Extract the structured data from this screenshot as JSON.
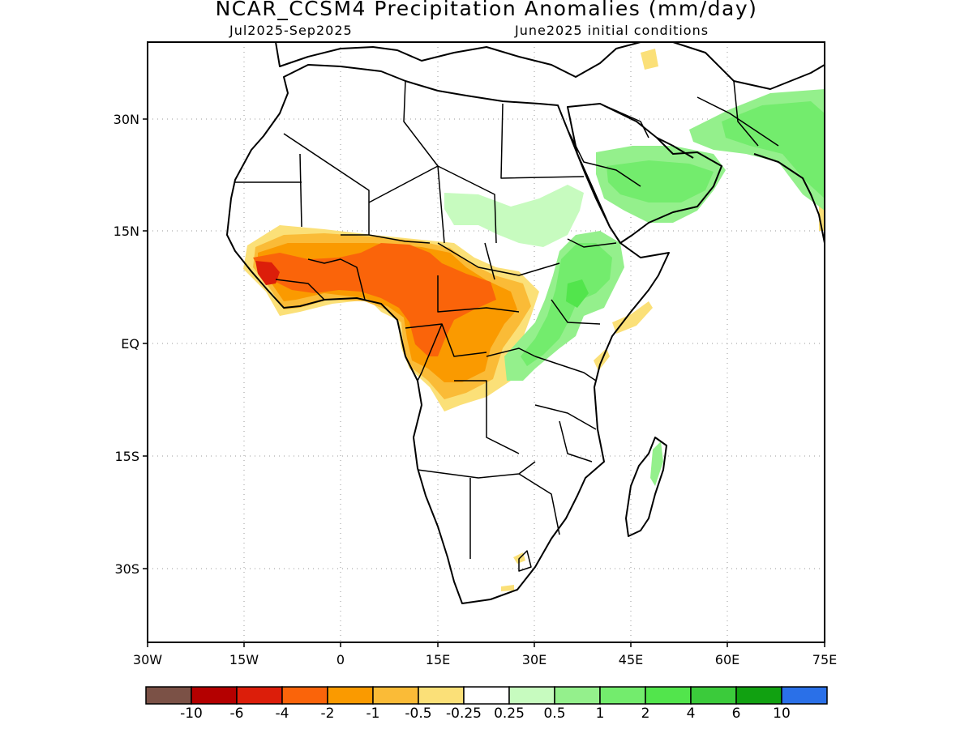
{
  "title": "NCAR_CCSM4 Precipitation Anomalies (mm/day)",
  "subtitle_left": "Jul2025-Sep2025",
  "subtitle_right": "June2025 initial conditions",
  "axes": {
    "y_ticks": [
      "30N",
      "15N",
      "EQ",
      "15S",
      "30S"
    ],
    "x_ticks": [
      "30W",
      "15W",
      "0",
      "15E",
      "30E",
      "45E",
      "60E",
      "75E"
    ]
  },
  "colorbar": {
    "colors": [
      "#7b5146",
      "#b40000",
      "#dc1e0a",
      "#fa640a",
      "#fa9a00",
      "#fabb37",
      "#fbe078",
      "#ffffff",
      "#c7fbbf",
      "#94f08c",
      "#73ec6d",
      "#52e54c",
      "#3bcb3b",
      "#11a111",
      "#2a70e8"
    ],
    "labels": [
      "-10",
      "-6",
      "-4",
      "-2",
      "-1",
      "-0.5",
      "-0.25",
      "0.25",
      "0.5",
      "1",
      "2",
      "4",
      "6",
      "10"
    ]
  }
}
